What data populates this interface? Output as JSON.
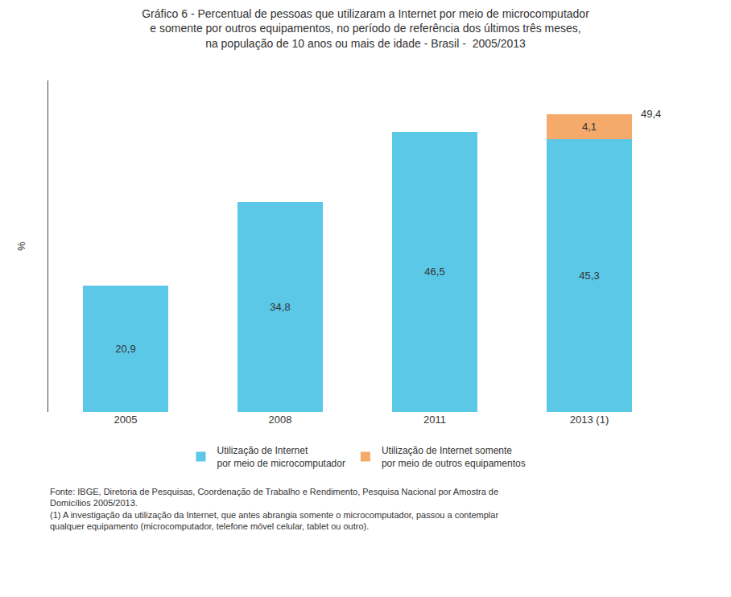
{
  "chart_data": {
    "type": "bar",
    "stacked": true,
    "title": "Gráfico 6 - Percentual de pessoas que utilizaram a Internet por meio de microcomputador\ne somente por outros equipamentos, no período de referência dos últimos três meses,\nna população de 10 anos ou mais de idade - Brasil -  2005/2013",
    "ylabel": "%",
    "categories": [
      "2005",
      "2008",
      "2011",
      "2013 (1)"
    ],
    "series": [
      {
        "name": "Utilização de Internet\npor meio de microcomputador",
        "color": "#5BC8E8",
        "values": [
          20.9,
          34.8,
          46.5,
          45.3
        ],
        "value_labels": [
          "20,9",
          "34,8",
          "46,5",
          "45,3"
        ]
      },
      {
        "name": "Utilização de Internet somente\npor meio de outros equipamentos",
        "color": "#F5A96B",
        "values": [
          0,
          0,
          0,
          4.1
        ],
        "value_labels": [
          null,
          null,
          null,
          "4,1"
        ]
      }
    ],
    "data_labels": true,
    "annotations": [
      {
        "category": "2013 (1)",
        "value": 49.4,
        "text": "49,4"
      }
    ],
    "ylim": [
      0,
      55
    ],
    "tick_labels": "x",
    "grid": false,
    "legend": "bottom",
    "source": [
      "Fonte: IBGE, Diretoria de Pesquisas, Coordenação de Trabalho e Rendimento, Pesquisa Nacional por Amostra de",
      "Domicílios 2005/2013."
    ],
    "note": [
      "(1) A investigação da utilização da Internet, que antes abrangia somente o microcomputador, passou a contemplar",
      "qualquer equipamento (microcomputador, telefone móvel celular, tablet ou outro)."
    ]
  }
}
